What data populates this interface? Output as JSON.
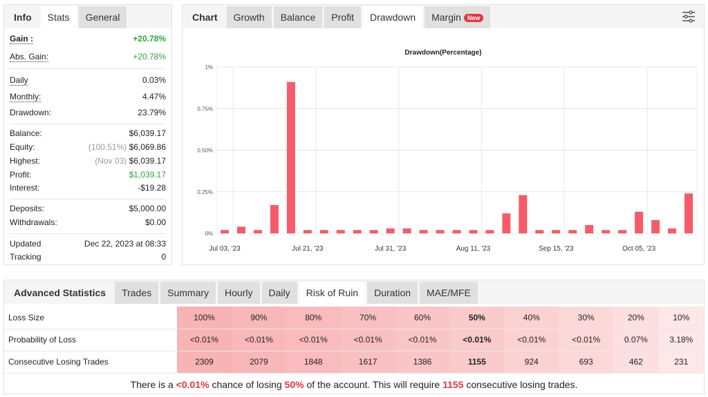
{
  "left_panel": {
    "tabs": [
      {
        "label": "Info"
      },
      {
        "label": "Stats"
      },
      {
        "label": "General"
      }
    ],
    "rows": [
      {
        "label": "Gain :",
        "value": "+20.78%"
      },
      {
        "label": "Abs. Gain:",
        "value": "+20.78%"
      },
      {
        "label": "Daily",
        "value": "0.03%"
      },
      {
        "label": "Monthly:",
        "value": "4.47%"
      },
      {
        "label": "Drawdown:",
        "value": "23.79%"
      },
      {
        "label": "Balance:",
        "value": "$6,039.17"
      },
      {
        "label": "Equity:",
        "note": "(100.51%)",
        "value": "$6,069.86"
      },
      {
        "label": "Highest:",
        "note": "(Nov 03)",
        "value": "$6,039.17"
      },
      {
        "label": "Profit:",
        "value": "$1,039.17"
      },
      {
        "label": "Interest:",
        "value": "-$19.28"
      },
      {
        "label": "Deposits:",
        "value": "$5,000.00"
      },
      {
        "label": "Withdrawals:",
        "value": "$0.00"
      },
      {
        "label": "Updated",
        "value": "Dec 22, 2023 at 08:33"
      },
      {
        "label": "Tracking",
        "value": "0"
      }
    ]
  },
  "chart_panel": {
    "tabs": [
      {
        "label": "Chart"
      },
      {
        "label": "Growth"
      },
      {
        "label": "Balance"
      },
      {
        "label": "Profit"
      },
      {
        "label": "Drawdown"
      },
      {
        "label": "Margin",
        "badge": "New"
      }
    ],
    "settings_icon": "sliders-icon"
  },
  "chart_data": {
    "type": "bar",
    "title": "Drawdown(Percentage)",
    "bar_color": "#f75a68",
    "ylim": [
      0,
      1
    ],
    "yticks": [
      {
        "v": 0,
        "label": "0%"
      },
      {
        "v": 0.25,
        "label": "0.25%"
      },
      {
        "v": 0.5,
        "label": "0.50%"
      },
      {
        "v": 0.75,
        "label": "0.75%"
      },
      {
        "v": 1,
        "label": "1%"
      }
    ],
    "xtick_labels": [
      "Jul 03, '23",
      "Jul 21, '23",
      "Jul 31, '23",
      "Aug 11, '23",
      "Sep 15, '23",
      "Oct 05, '23"
    ],
    "values": [
      0.02,
      0.04,
      0.02,
      0.17,
      0.91,
      0.02,
      0.02,
      0.02,
      0.02,
      0.02,
      0.03,
      0.03,
      0.02,
      0.02,
      0.02,
      0.02,
      0.02,
      0.12,
      0.23,
      0.02,
      0.02,
      0.02,
      0.05,
      0.02,
      0.02,
      0.13,
      0.08,
      0.03,
      0.24
    ],
    "grid": true
  },
  "advanced": {
    "tabs": [
      {
        "label": "Advanced Statistics"
      },
      {
        "label": "Trades"
      },
      {
        "label": "Summary"
      },
      {
        "label": "Hourly"
      },
      {
        "label": "Daily"
      },
      {
        "label": "Risk of Ruin"
      },
      {
        "label": "Duration"
      },
      {
        "label": "MAE/MFE"
      }
    ],
    "rows": [
      {
        "label": "Loss Size",
        "cells": [
          "100%",
          "90%",
          "80%",
          "70%",
          "60%",
          "50%",
          "40%",
          "30%",
          "20%",
          "10%"
        ]
      },
      {
        "label": "Probability of Loss",
        "cells": [
          "<0.01%",
          "<0.01%",
          "<0.01%",
          "<0.01%",
          "<0.01%",
          "<0.01%",
          "<0.01%",
          "<0.01%",
          "0.07%",
          "3.18%"
        ]
      },
      {
        "label": "Consecutive Losing Trades",
        "cells": [
          "2309",
          "2079",
          "1848",
          "1617",
          "1386",
          "1155",
          "924",
          "693",
          "462",
          "231"
        ]
      }
    ],
    "highlight_column": 5,
    "summary": {
      "p1": "There is a ",
      "prob": "<0.01%",
      "p2": " chance of losing ",
      "loss": "50%",
      "p3": " of the account. This will require ",
      "trades": "1155",
      "p4": " consecutive losing trades."
    }
  }
}
